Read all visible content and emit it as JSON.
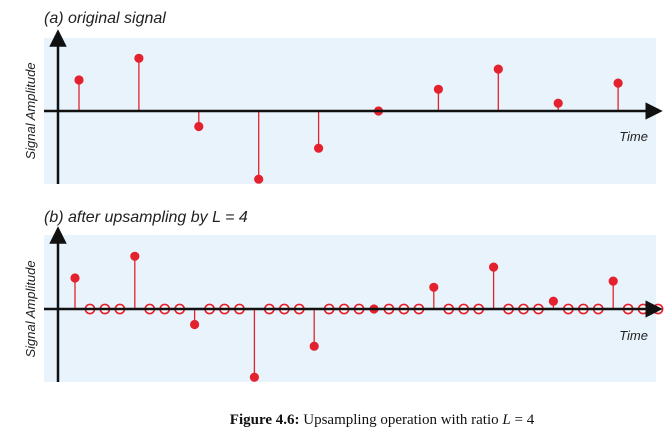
{
  "chart_data": [
    {
      "type": "stem",
      "title": "(a) original signal",
      "xlabel": "Time",
      "ylabel": "Signal Amplitude",
      "ylim": [
        -2.5,
        2.0
      ],
      "x": [
        0,
        1,
        2,
        3,
        4,
        5,
        6,
        7,
        8,
        9
      ],
      "values": [
        1.0,
        1.7,
        -0.5,
        -2.2,
        -1.2,
        0.0,
        0.7,
        1.35,
        0.25,
        0.9
      ],
      "grid": false
    },
    {
      "type": "stem",
      "title": "(b) after upsampling by L = 4",
      "xlabel": "Time",
      "ylabel": "Signal Amplitude",
      "ylim": [
        -2.5,
        2.0
      ],
      "upsampling_factor": 4,
      "x": [
        0,
        1,
        2,
        3,
        4,
        5,
        6,
        7,
        8,
        9,
        10,
        11,
        12,
        13,
        14,
        15,
        16,
        17,
        18,
        19,
        20,
        21,
        22,
        23,
        24,
        25,
        26,
        27,
        28,
        29,
        30,
        31,
        32,
        33,
        34,
        35,
        36,
        37,
        38,
        39
      ],
      "values": [
        1.0,
        0,
        0,
        0,
        1.7,
        0,
        0,
        0,
        -0.5,
        0,
        0,
        0,
        -2.2,
        0,
        0,
        0,
        -1.2,
        0,
        0,
        0,
        0.0,
        0,
        0,
        0,
        0.7,
        0,
        0,
        0,
        1.35,
        0,
        0,
        0,
        0.25,
        0,
        0,
        0,
        0.9,
        0,
        0,
        0
      ],
      "grid": false
    }
  ],
  "caption": {
    "label": "Figure 4.6:",
    "text_before": " Upsampling operation with ratio ",
    "var": "L",
    "text_after": " = 4"
  },
  "colors": {
    "panel_bg": "#e9f3fc",
    "stem": "#e3222e",
    "axis": "#111111"
  }
}
